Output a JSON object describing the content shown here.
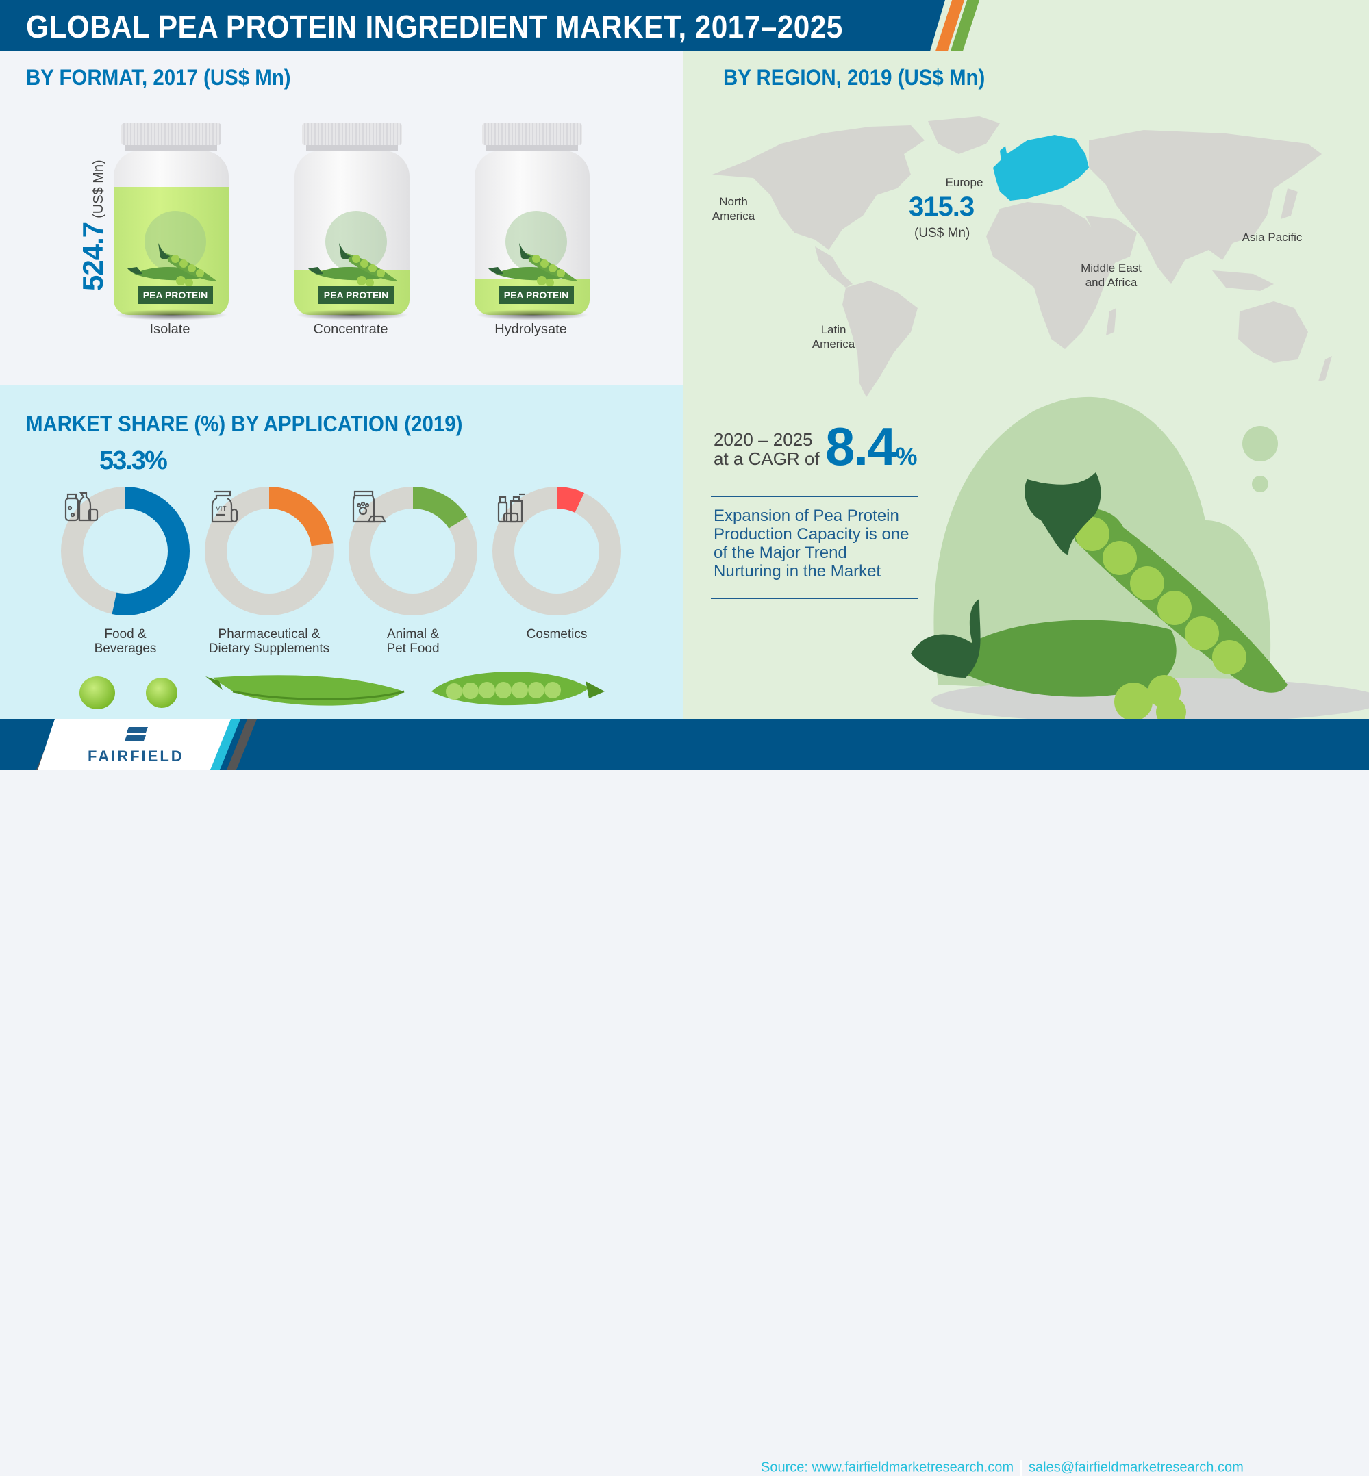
{
  "header": {
    "title": "GLOBAL PEA PROTEIN INGREDIENT MARKET, 2017–2025",
    "accent_colors": [
      "#ef8132",
      "#72ad47"
    ]
  },
  "format_section": {
    "title": "BY FORMAT, 2017 (US$ Mn)",
    "badge_label": "PEA PROTEIN",
    "highlight_value": "524.7",
    "highlight_unit": "(US$ Mn)",
    "jars": [
      {
        "label": "Isolate",
        "fill_percent": 78
      },
      {
        "label": "Concentrate",
        "fill_percent": 27
      },
      {
        "label": "Hydrolysate",
        "fill_percent": 22
      }
    ]
  },
  "region_section": {
    "title": "BY REGION, 2019 (US$ Mn)",
    "regions": {
      "north_america": [
        "North",
        "America"
      ],
      "latin_america": [
        "Latin",
        "America"
      ],
      "europe": "Europe",
      "mea": [
        "Middle East",
        "and Africa"
      ],
      "apac": "Asia Pacific"
    },
    "highlight_region": "Europe",
    "highlight_value": "315.3",
    "highlight_unit": "(US$ Mn)",
    "highlight_color": "#21bcdb"
  },
  "cagr": {
    "years": "2020 – 2025",
    "prefix": "at a CAGR of",
    "value": "8.4",
    "percent": "%",
    "trend_text": "Expansion of Pea Protein Production Capacity is one of the Major Trend Nurturing in the Market"
  },
  "application_section": {
    "title": "MARKET SHARE (%) BY APPLICATION (2019)",
    "top_share_label": "53.3%"
  },
  "chart_data": [
    {
      "type": "bar",
      "title": "BY FORMAT, 2017 (US$ Mn)",
      "categories": [
        "Isolate",
        "Concentrate",
        "Hydrolysate"
      ],
      "values": [
        524.7,
        null,
        null
      ],
      "annotations": [
        "524.7 (US$ Mn) labeled on Isolate"
      ],
      "ylabel": "US$ Mn"
    },
    {
      "type": "pie",
      "title": "MARKET SHARE (%) BY APPLICATION (2019)",
      "categories": [
        "Food & Beverages",
        "Pharmaceutical & Dietary Supplements",
        "Animal & Pet Food",
        "Cosmetics"
      ],
      "values": [
        53.3,
        23,
        16,
        7
      ],
      "colors": [
        "#0075b4",
        "#ef8132",
        "#72ad47",
        "#ff5252"
      ],
      "annotations": [
        "53.3% labeled for Food & Beverages"
      ]
    },
    {
      "type": "table",
      "title": "BY REGION, 2019 (US$ Mn)",
      "categories": [
        "North America",
        "Europe",
        "Latin America",
        "Middle East and Africa",
        "Asia Pacific"
      ],
      "values": [
        null,
        315.3,
        null,
        null,
        null
      ]
    }
  ],
  "donuts": [
    {
      "label_lines": [
        "Food &",
        "Beverages"
      ],
      "percent": 53.3,
      "color": "#0075b4",
      "icon": "food-beverage-icon"
    },
    {
      "label_lines": [
        "Pharmaceutical &",
        "Dietary Supplements"
      ],
      "percent": 23,
      "color": "#ef8132",
      "icon": "vitamin-bottle-icon"
    },
    {
      "label_lines": [
        "Animal &",
        "Pet Food"
      ],
      "percent": 16,
      "color": "#72ad47",
      "icon": "pet-food-icon"
    },
    {
      "label_lines": [
        "Cosmetics"
      ],
      "percent": 7,
      "color": "#ff5252",
      "icon": "cosmetics-icon"
    }
  ],
  "footer": {
    "brand": "FAIRFIELD",
    "source": "Source: www.fairfieldmarketresearch.com",
    "email": "sales@fairfieldmarketresearch.com"
  }
}
